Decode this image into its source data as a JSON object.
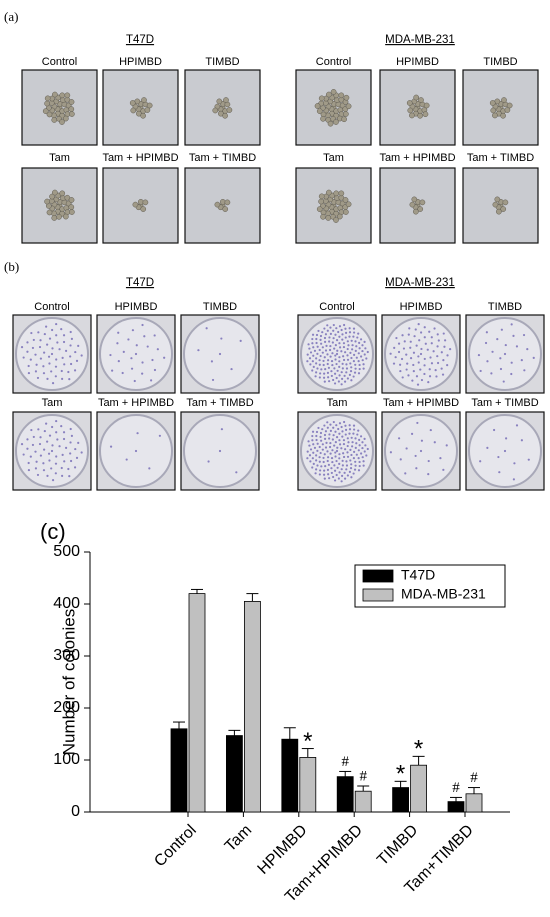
{
  "panels": [
    {
      "label": "(a)",
      "groups": [
        {
          "title": "T47D",
          "images": [
            "Control",
            "HPIMBD",
            "TIMBD",
            "Tam",
            "Tam + HPIMBD",
            "Tam + TIMBD"
          ]
        },
        {
          "title": "MDA-MB-231",
          "images": [
            "Control",
            "HPIMBD",
            "TIMBD",
            "Tam",
            "Tam + HPIMBD",
            "Tam + TIMBD"
          ]
        }
      ]
    },
    {
      "label": "(b)",
      "groups": [
        {
          "title": "T47D",
          "images": [
            "Control",
            "HPIMBD",
            "TIMBD",
            "Tam",
            "Tam + HPIMBD",
            "Tam + TIMBD"
          ]
        },
        {
          "title": "MDA-MB-231",
          "images": [
            "Control",
            "HPIMBD",
            "TIMBD",
            "Tam",
            "Tam + HPIMBD",
            "Tam + TIMBD"
          ]
        }
      ]
    }
  ],
  "chart_data": {
    "type": "bar",
    "panel_label": "(c)",
    "y_label": "Number of colonies",
    "categories": [
      "Control",
      "Tam",
      "HPIMBD",
      "Tam+HPIMBD",
      "TIMBD",
      "Tam+TIMBD"
    ],
    "series": [
      {
        "name": "T47D",
        "color": "#000000",
        "values": [
          160,
          147,
          140,
          68,
          47,
          20
        ],
        "errors": [
          13,
          10,
          22,
          10,
          12,
          8
        ],
        "markers": [
          null,
          null,
          null,
          "#",
          "*",
          "#"
        ]
      },
      {
        "name": "MDA-MB-231",
        "color": "#c0c0c0",
        "values": [
          420,
          405,
          105,
          40,
          90,
          35
        ],
        "errors": [
          8,
          15,
          17,
          10,
          17,
          12
        ],
        "markers": [
          null,
          null,
          "*",
          "#",
          "*",
          "#"
        ]
      }
    ],
    "ylim": [
      0,
      500
    ],
    "yticks": [
      0,
      100,
      200,
      300,
      400,
      500
    ],
    "legend": "upper-right"
  }
}
